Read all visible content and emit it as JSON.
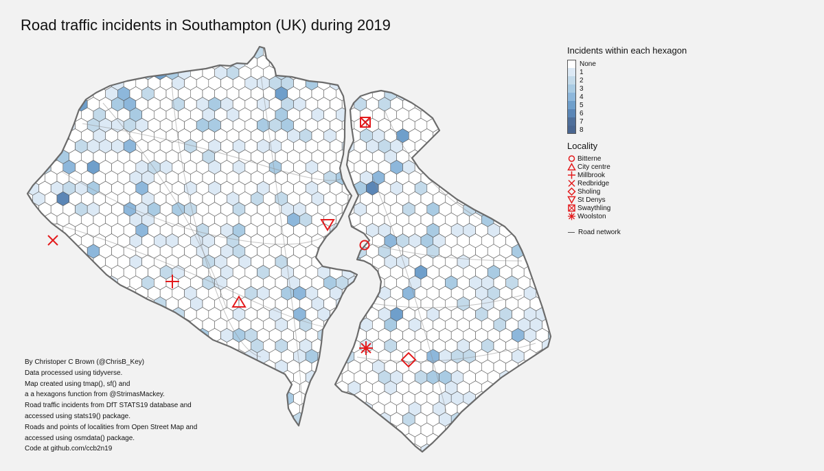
{
  "title": "Road traffic incidents in Southampton (UK) during 2019",
  "legend": {
    "fill_title": "Incidents within each hexagon",
    "fill_classes": [
      {
        "label": "None",
        "color": "#ffffff"
      },
      {
        "label": "1",
        "color": "#dce9f5"
      },
      {
        "label": "2",
        "color": "#c3daea"
      },
      {
        "label": "3",
        "color": "#a9cbe3"
      },
      {
        "label": "4",
        "color": "#8db7db"
      },
      {
        "label": "5",
        "color": "#6f9fcb"
      },
      {
        "label": "6",
        "color": "#5b86b6"
      },
      {
        "label": "7",
        "color": "#4f6f9a"
      },
      {
        "label": "8",
        "color": "#4a6690"
      }
    ],
    "locality_title": "Locality",
    "localities": [
      {
        "label": "Bitterne",
        "symbol": "circle"
      },
      {
        "label": "City centre",
        "symbol": "triangle-up"
      },
      {
        "label": "Millbrook",
        "symbol": "plus"
      },
      {
        "label": "Redbridge",
        "symbol": "cross"
      },
      {
        "label": "Sholing",
        "symbol": "diamond"
      },
      {
        "label": "St Denys",
        "symbol": "triangle-down"
      },
      {
        "label": "Swaythling",
        "symbol": "boxed-cross"
      },
      {
        "label": "Woolston",
        "symbol": "asterisk"
      }
    ],
    "road_label": "Road network"
  },
  "credits": [
    "By Christoper C Brown (@ChrisB_Key)",
    "Data processed using tidyverse.",
    "Map created using tmap(), sf() and",
    "a a hexagons function from @StrimasMackey.",
    "Road traffic incidents from DfT STATS19 database and",
    "accessed using stats19() package.",
    "Roads and points of localities from Open Street Map and",
    "accessed using osmdata() package.",
    "Code at github.com/ccb2n19"
  ],
  "colors": {
    "marker": "#e31a1c",
    "outline": "#6b6b6b",
    "hex_stroke": "#555555",
    "road": "#9a9a9a",
    "background": "#f2f2f2"
  }
}
